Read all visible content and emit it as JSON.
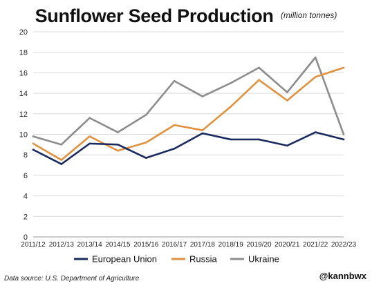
{
  "title": "Sunflower Seed Production",
  "subtitle": "(million tonnes)",
  "source": "Data source: U.S. Department of Agriculture",
  "handle": "@kannbwx",
  "chart_data": {
    "type": "line",
    "title": "Sunflower Seed Production",
    "subtitle": "(million tonnes)",
    "xlabel": "",
    "ylabel": "",
    "categories": [
      "2011/12",
      "2012/13",
      "2013/14",
      "2014/15",
      "2015/16",
      "2016/17",
      "2017/18",
      "2018/19",
      "2019/20",
      "2020/21",
      "2021/22",
      "2022/23"
    ],
    "ylim": [
      0,
      20
    ],
    "yticks": [
      0,
      2,
      4,
      6,
      8,
      10,
      12,
      14,
      16,
      18,
      20
    ],
    "grid": "horizontal",
    "legend": "bottom",
    "series": [
      {
        "name": "European Union",
        "color": "#1b2a5e",
        "values": [
          8.5,
          7.1,
          9.1,
          9.0,
          7.7,
          8.6,
          10.1,
          9.5,
          9.5,
          8.9,
          10.2,
          9.5
        ]
      },
      {
        "name": "Russia",
        "color": "#e0913f",
        "values": [
          9.1,
          7.5,
          9.8,
          8.4,
          9.2,
          10.9,
          10.4,
          12.7,
          15.3,
          13.3,
          15.6,
          16.5
        ]
      },
      {
        "name": "Ukraine",
        "color": "#8c8c8c",
        "values": [
          9.8,
          9.0,
          11.6,
          10.2,
          11.9,
          15.2,
          13.7,
          15.0,
          16.5,
          14.1,
          17.5,
          10.0
        ]
      }
    ]
  }
}
